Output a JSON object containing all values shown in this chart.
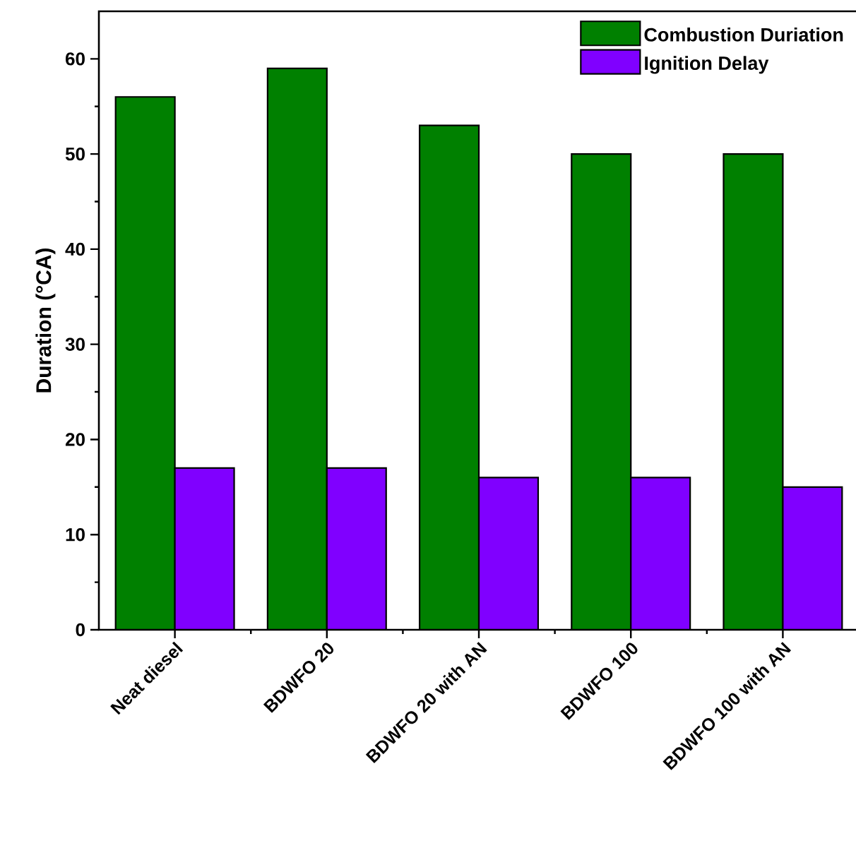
{
  "chart_data": {
    "type": "bar",
    "ylabel": "Duration (°CA)",
    "categories": [
      "Neat diesel",
      "BDWFO 20",
      "BDWFO 20 with AN",
      "BDWFO 100",
      "BDWFO 100 with AN"
    ],
    "series": [
      {
        "name": "Combustion Duriation",
        "color": "#008000",
        "values": [
          56,
          59,
          53,
          50,
          50
        ]
      },
      {
        "name": "Ignition Delay",
        "color": "#8000ff",
        "values": [
          17,
          17,
          16,
          16,
          15
        ]
      }
    ],
    "ylim": [
      0,
      65
    ],
    "yticks": [
      0,
      10,
      20,
      30,
      40,
      50,
      60
    ],
    "legend": "top right"
  }
}
